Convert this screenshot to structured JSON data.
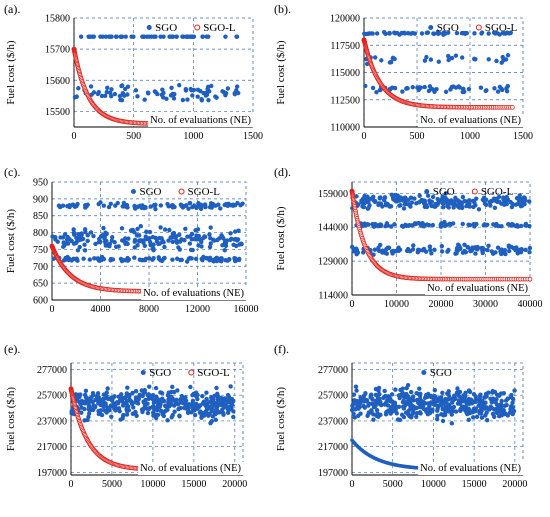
{
  "figure": {
    "ylabel": "Fuel cost ($/h)",
    "xnote": "No. of evaluations (NE)",
    "colors": {
      "sgo": "#1f5fbf",
      "sgol": "#e0211a",
      "axis": "#3f6fb4",
      "text": "#000000"
    }
  },
  "chart_data": [
    {
      "panel": "(a).",
      "type": "scatter",
      "xlim": [
        0,
        1500
      ],
      "ylim": [
        15450,
        15800
      ],
      "xticks": [
        0,
        500,
        1000,
        1500
      ],
      "yticks": [
        15500,
        15600,
        15700,
        15800
      ],
      "ylabel": "Fuel cost ($/h)",
      "annotation": "No. of evaluations (NE)",
      "legend": [
        "SGO",
        "SGO-L"
      ],
      "series": [
        {
          "name": "SGO",
          "n_evaluations": 1400,
          "bands": [
            {
              "y": 15740,
              "share": 0.4,
              "spread": 0
            },
            {
              "y": 15560,
              "share": 0.6,
              "spread": 35
            }
          ]
        },
        {
          "name": "SGO-L",
          "start": 15700,
          "plateau": 15460,
          "decay_evaluations": 120
        }
      ]
    },
    {
      "panel": "(b).",
      "type": "scatter",
      "xlim": [
        0,
        1500
      ],
      "ylim": [
        110000,
        120000
      ],
      "xticks": [
        0,
        500,
        1000,
        1500
      ],
      "yticks": [
        110000,
        112500,
        115000,
        117500,
        120000
      ],
      "ylabel": "Fuel cost ($/h)",
      "annotation": "No. of evaluations (NE)",
      "legend": [
        "SGO",
        "SGO-L"
      ],
      "series": [
        {
          "name": "SGO",
          "n_evaluations": 1400,
          "bands": [
            {
              "y": 118600,
              "share": 0.45,
              "spread": 150
            },
            {
              "y": 116200,
              "share": 0.2,
              "spread": 600
            },
            {
              "y": 113500,
              "share": 0.35,
              "spread": 500
            }
          ]
        },
        {
          "name": "SGO-L",
          "start": 118000,
          "plateau": 111800,
          "decay_evaluations": 150
        }
      ]
    },
    {
      "panel": "(c).",
      "type": "scatter",
      "xlim": [
        0,
        16000
      ],
      "ylim": [
        600,
        950
      ],
      "xticks": [
        0,
        4000,
        8000,
        12000,
        16000
      ],
      "yticks": [
        600,
        650,
        700,
        750,
        800,
        850,
        900,
        950
      ],
      "ylabel": "Fuel cost ($/h)",
      "annotation": "No. of evaluations (NE)",
      "legend": [
        "SGO",
        "SGO-L"
      ],
      "series": [
        {
          "name": "SGO",
          "n_evaluations": 15800,
          "bands": [
            {
              "y": 880,
              "share": 0.25,
              "spread": 12
            },
            {
              "y": 780,
              "share": 0.5,
              "spread": 45
            },
            {
              "y": 720,
              "share": 0.25,
              "spread": 10
            }
          ]
        },
        {
          "name": "SGO-L",
          "start": 760,
          "plateau": 625,
          "decay_evaluations": 1500
        }
      ]
    },
    {
      "panel": "(d).",
      "type": "scatter",
      "xlim": [
        0,
        40000
      ],
      "ylim": [
        114000,
        164000
      ],
      "xticks": [
        0,
        10000,
        20000,
        30000,
        40000
      ],
      "yticks": [
        114000,
        129000,
        144000,
        159000
      ],
      "ylabel": "Fuel cost ($/h)",
      "annotation": "No. of evaluations (NE)",
      "legend": [
        "SGO",
        "SGO-L"
      ],
      "series": [
        {
          "name": "SGO",
          "n_evaluations": 40000,
          "bands": [
            {
              "y": 155000,
              "share": 0.5,
              "spread": 4500
            },
            {
              "y": 145000,
              "share": 0.2,
              "spread": 1500
            },
            {
              "y": 134000,
              "share": 0.3,
              "spread": 3000
            }
          ]
        },
        {
          "name": "SGO-L",
          "start": 160000,
          "plateau": 121000,
          "decay_evaluations": 3000
        }
      ]
    },
    {
      "panel": "(e).",
      "type": "scatter",
      "xlim": [
        0,
        21000
      ],
      "ylim": [
        195000,
        282000
      ],
      "xticks": [
        0,
        5000,
        10000,
        15000,
        20000
      ],
      "yticks": [
        197000,
        217000,
        237000,
        257000,
        277000
      ],
      "ylabel": "Fuel cost ($/h)",
      "annotation": "No. of evaluations (NE)",
      "legend": [
        "SGO",
        "SGO-L"
      ],
      "series": [
        {
          "name": "SGO",
          "n_evaluations": 20000,
          "bands": [
            {
              "y": 250000,
              "share": 1.0,
              "spread": 17000
            }
          ]
        },
        {
          "name": "SGO-L",
          "start": 262000,
          "plateau": 199000,
          "decay_evaluations": 2000
        }
      ]
    },
    {
      "panel": "(f).",
      "type": "scatter",
      "xlim": [
        0,
        21000
      ],
      "ylim": [
        195000,
        282000
      ],
      "xticks": [
        0,
        5000,
        10000,
        15000,
        20000
      ],
      "yticks": [
        197000,
        217000,
        237000,
        257000,
        277000
      ],
      "ylabel": "Fuel cost ($/h)",
      "annotation": "No. of evaluations (NE)",
      "legend": [
        "SGO"
      ],
      "series": [
        {
          "name": "SGO",
          "n_evaluations": 20000,
          "bands": [
            {
              "y": 250000,
              "share": 1.0,
              "spread": 17000
            }
          ],
          "lower_curve": {
            "start": 222000,
            "plateau": 199000,
            "decay_evaluations": 3000
          }
        }
      ]
    }
  ]
}
